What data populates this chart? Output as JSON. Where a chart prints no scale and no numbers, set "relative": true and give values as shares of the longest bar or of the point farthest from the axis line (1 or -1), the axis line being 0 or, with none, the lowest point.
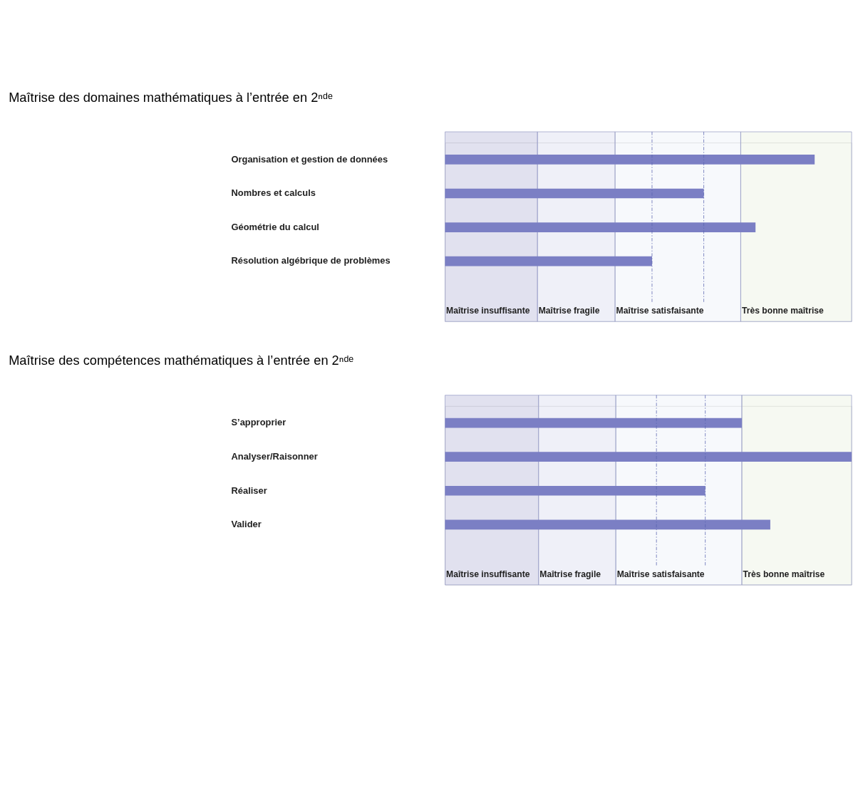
{
  "chart_data": [
    {
      "type": "bar",
      "orientation": "horizontal",
      "relative": true,
      "title": "Maîtrise des domaines mathématiques à l’entrée en 2ⁿᵈᵉ",
      "categories": [
        "Organisation et gestion de données",
        "Nombres et calculs",
        "Géométrie du calcul",
        "Résolution algébrique de problèmes"
      ],
      "series": [
        {
          "color": "#7b7fc4",
          "values": [
            1,
            0.7,
            0.84,
            0.56
          ]
        }
      ],
      "bands": [
        {
          "axis": "x",
          "from": 0,
          "to": 0.25,
          "label": "Maîtrise insuffisante",
          "color": "#5b57a8"
        },
        {
          "axis": "x",
          "from": 0.25,
          "to": 0.46,
          "label": "Maîtrise fragile",
          "color": "#a9aad8"
        },
        {
          "axis": "x",
          "from": 0.46,
          "to": 0.8,
          "label": "Maîtrise satisfaisante",
          "color": "#d3dcec"
        },
        {
          "axis": "x",
          "from": 0.8,
          "to": 1.1,
          "label": "Très bonne maîtrise",
          "color": "#cfe0b8"
        }
      ],
      "ref_lines": [
        {
          "axis": "x",
          "value": 0.56,
          "line_style": "dashed"
        },
        {
          "axis": "x",
          "value": 0.7,
          "line_style": "dashed"
        }
      ]
    },
    {
      "type": "bar",
      "orientation": "horizontal",
      "relative": true,
      "title": "Maîtrise des compétences mathématiques à l’entrée en 2ⁿᵈᵉ",
      "categories": [
        "S’approprier",
        "Analyser/Raisonner",
        "Réaliser",
        "Valider"
      ],
      "series": [
        {
          "color": "#7b7fc4",
          "values": [
            0.73,
            1,
            0.64,
            0.8
          ]
        }
      ],
      "bands": [
        {
          "axis": "x",
          "from": 0,
          "to": 0.23,
          "label": "Maîtrise insuffisante",
          "color": "#5b57a8"
        },
        {
          "axis": "x",
          "from": 0.23,
          "to": 0.42,
          "label": "Maîtrise fragile",
          "color": "#a9aad8"
        },
        {
          "axis": "x",
          "from": 0.42,
          "to": 0.73,
          "label": "Maîtrise satisfaisante",
          "color": "#d3dcec"
        },
        {
          "axis": "x",
          "from": 0.73,
          "to": 1.0,
          "label": "Très bonne maîtrise",
          "color": "#cfe0b8"
        }
      ],
      "ref_lines": [
        {
          "axis": "x",
          "value": 0.52,
          "line_style": "dashed"
        },
        {
          "axis": "x",
          "value": 0.64,
          "line_style": "dashed"
        }
      ]
    }
  ]
}
